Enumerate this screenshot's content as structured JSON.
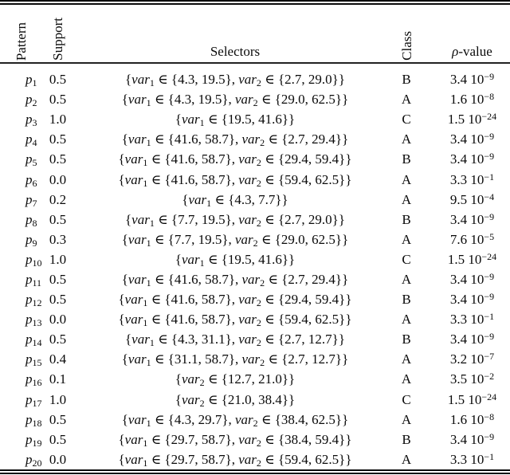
{
  "table": {
    "header": {
      "pattern": "Pattern",
      "support": "Support",
      "selectors": "Selectors",
      "class": "Class",
      "rho_symbol": "ρ",
      "rho_rest": "-value"
    },
    "notation": {
      "open": "{",
      "close": "}",
      "element_of": "∈",
      "separator": ", "
    },
    "rows": [
      {
        "pattern": "p",
        "pattern_sub": "1",
        "support": "0.5",
        "selectors": [
          {
            "name": "var",
            "sub": "1",
            "set": [
              "4.3",
              "19.5"
            ]
          },
          {
            "name": "var",
            "sub": "2",
            "set": [
              "2.7",
              "29.0"
            ]
          }
        ],
        "class": "B",
        "rho_coef": "3.4",
        "rho_base": "10",
        "rho_exp": "−9"
      },
      {
        "pattern": "p",
        "pattern_sub": "2",
        "support": "0.5",
        "selectors": [
          {
            "name": "var",
            "sub": "1",
            "set": [
              "4.3",
              "19.5"
            ]
          },
          {
            "name": "var",
            "sub": "2",
            "set": [
              "29.0",
              "62.5"
            ]
          }
        ],
        "class": "A",
        "rho_coef": "1.6",
        "rho_base": "10",
        "rho_exp": "−8"
      },
      {
        "pattern": "p",
        "pattern_sub": "3",
        "support": "1.0",
        "selectors": [
          {
            "name": "var",
            "sub": "1",
            "set": [
              "19.5",
              "41.6"
            ]
          }
        ],
        "class": "C",
        "rho_coef": "1.5",
        "rho_base": "10",
        "rho_exp": "−24"
      },
      {
        "pattern": "p",
        "pattern_sub": "4",
        "support": "0.5",
        "selectors": [
          {
            "name": "var",
            "sub": "1",
            "set": [
              "41.6",
              "58.7"
            ]
          },
          {
            "name": "var",
            "sub": "2",
            "set": [
              "2.7",
              "29.4"
            ]
          }
        ],
        "class": "A",
        "rho_coef": "3.4",
        "rho_base": "10",
        "rho_exp": "−9"
      },
      {
        "pattern": "p",
        "pattern_sub": "5",
        "support": "0.5",
        "selectors": [
          {
            "name": "var",
            "sub": "1",
            "set": [
              "41.6",
              "58.7"
            ]
          },
          {
            "name": "var",
            "sub": "2",
            "set": [
              "29.4",
              "59.4"
            ]
          }
        ],
        "class": "B",
        "rho_coef": "3.4",
        "rho_base": "10",
        "rho_exp": "−9"
      },
      {
        "pattern": "p",
        "pattern_sub": "6",
        "support": "0.0",
        "selectors": [
          {
            "name": "var",
            "sub": "1",
            "set": [
              "41.6",
              "58.7"
            ]
          },
          {
            "name": "var",
            "sub": "2",
            "set": [
              "59.4",
              "62.5"
            ]
          }
        ],
        "class": "A",
        "rho_coef": "3.3",
        "rho_base": "10",
        "rho_exp": "−1"
      },
      {
        "pattern": "p",
        "pattern_sub": "7",
        "support": "0.2",
        "selectors": [
          {
            "name": "var",
            "sub": "1",
            "set": [
              "4.3",
              "7.7"
            ]
          }
        ],
        "class": "A",
        "rho_coef": "9.5",
        "rho_base": "10",
        "rho_exp": "−4"
      },
      {
        "pattern": "p",
        "pattern_sub": "8",
        "support": "0.5",
        "selectors": [
          {
            "name": "var",
            "sub": "1",
            "set": [
              "7.7",
              "19.5"
            ]
          },
          {
            "name": "var",
            "sub": "2",
            "set": [
              "2.7",
              "29.0"
            ]
          }
        ],
        "class": "B",
        "rho_coef": "3.4",
        "rho_base": "10",
        "rho_exp": "−9"
      },
      {
        "pattern": "p",
        "pattern_sub": "9",
        "support": "0.3",
        "selectors": [
          {
            "name": "var",
            "sub": "1",
            "set": [
              "7.7",
              "19.5"
            ]
          },
          {
            "name": "var",
            "sub": "2",
            "set": [
              "29.0",
              "62.5"
            ]
          }
        ],
        "class": "A",
        "rho_coef": "7.6",
        "rho_base": "10",
        "rho_exp": "−5"
      },
      {
        "pattern": "p",
        "pattern_sub": "10",
        "support": "1.0",
        "selectors": [
          {
            "name": "var",
            "sub": "1",
            "set": [
              "19.5",
              "41.6"
            ]
          }
        ],
        "class": "C",
        "rho_coef": "1.5",
        "rho_base": "10",
        "rho_exp": "−24"
      },
      {
        "pattern": "p",
        "pattern_sub": "11",
        "support": "0.5",
        "selectors": [
          {
            "name": "var",
            "sub": "1",
            "set": [
              "41.6",
              "58.7"
            ]
          },
          {
            "name": "var",
            "sub": "2",
            "set": [
              "2.7",
              "29.4"
            ]
          }
        ],
        "class": "A",
        "rho_coef": "3.4",
        "rho_base": "10",
        "rho_exp": "−9"
      },
      {
        "pattern": "p",
        "pattern_sub": "12",
        "support": "0.5",
        "selectors": [
          {
            "name": "var",
            "sub": "1",
            "set": [
              "41.6",
              "58.7"
            ]
          },
          {
            "name": "var",
            "sub": "2",
            "set": [
              "29.4",
              "59.4"
            ]
          }
        ],
        "class": "B",
        "rho_coef": "3.4",
        "rho_base": "10",
        "rho_exp": "−9"
      },
      {
        "pattern": "p",
        "pattern_sub": "13",
        "support": "0.0",
        "selectors": [
          {
            "name": "var",
            "sub": "1",
            "set": [
              "41.6",
              "58.7"
            ]
          },
          {
            "name": "var",
            "sub": "2",
            "set": [
              "59.4",
              "62.5"
            ]
          }
        ],
        "class": "A",
        "rho_coef": "3.3",
        "rho_base": "10",
        "rho_exp": "−1"
      },
      {
        "pattern": "p",
        "pattern_sub": "14",
        "support": "0.5",
        "selectors": [
          {
            "name": "var",
            "sub": "1",
            "set": [
              "4.3",
              "31.1"
            ]
          },
          {
            "name": "var",
            "sub": "2",
            "set": [
              "2.7",
              "12.7"
            ]
          }
        ],
        "class": "B",
        "rho_coef": "3.4",
        "rho_base": "10",
        "rho_exp": "−9"
      },
      {
        "pattern": "p",
        "pattern_sub": "15",
        "support": "0.4",
        "selectors": [
          {
            "name": "var",
            "sub": "1",
            "set": [
              "31.1",
              "58.7"
            ]
          },
          {
            "name": "var",
            "sub": "2",
            "set": [
              "2.7",
              "12.7"
            ]
          }
        ],
        "class": "A",
        "rho_coef": "3.2",
        "rho_base": "10",
        "rho_exp": "−7"
      },
      {
        "pattern": "p",
        "pattern_sub": "16",
        "support": "0.1",
        "selectors": [
          {
            "name": "var",
            "sub": "2",
            "set": [
              "12.7",
              "21.0"
            ]
          }
        ],
        "class": "A",
        "rho_coef": "3.5",
        "rho_base": "10",
        "rho_exp": "−2"
      },
      {
        "pattern": "p",
        "pattern_sub": "17",
        "support": "1.0",
        "selectors": [
          {
            "name": "var",
            "sub": "2",
            "set": [
              "21.0",
              "38.4"
            ]
          }
        ],
        "class": "C",
        "rho_coef": "1.5",
        "rho_base": "10",
        "rho_exp": "−24"
      },
      {
        "pattern": "p",
        "pattern_sub": "18",
        "support": "0.5",
        "selectors": [
          {
            "name": "var",
            "sub": "1",
            "set": [
              "4.3",
              "29.7"
            ]
          },
          {
            "name": "var",
            "sub": "2",
            "set": [
              "38.4",
              "62.5"
            ]
          }
        ],
        "class": "A",
        "rho_coef": "1.6",
        "rho_base": "10",
        "rho_exp": "−8"
      },
      {
        "pattern": "p",
        "pattern_sub": "19",
        "support": "0.5",
        "selectors": [
          {
            "name": "var",
            "sub": "1",
            "set": [
              "29.7",
              "58.7"
            ]
          },
          {
            "name": "var",
            "sub": "2",
            "set": [
              "38.4",
              "59.4"
            ]
          }
        ],
        "class": "B",
        "rho_coef": "3.4",
        "rho_base": "10",
        "rho_exp": "−9"
      },
      {
        "pattern": "p",
        "pattern_sub": "20",
        "support": "0.0",
        "selectors": [
          {
            "name": "var",
            "sub": "1",
            "set": [
              "29.7",
              "58.7"
            ]
          },
          {
            "name": "var",
            "sub": "2",
            "set": [
              "59.4",
              "62.5"
            ]
          }
        ],
        "class": "A",
        "rho_coef": "3.3",
        "rho_base": "10",
        "rho_exp": "−1"
      }
    ]
  }
}
